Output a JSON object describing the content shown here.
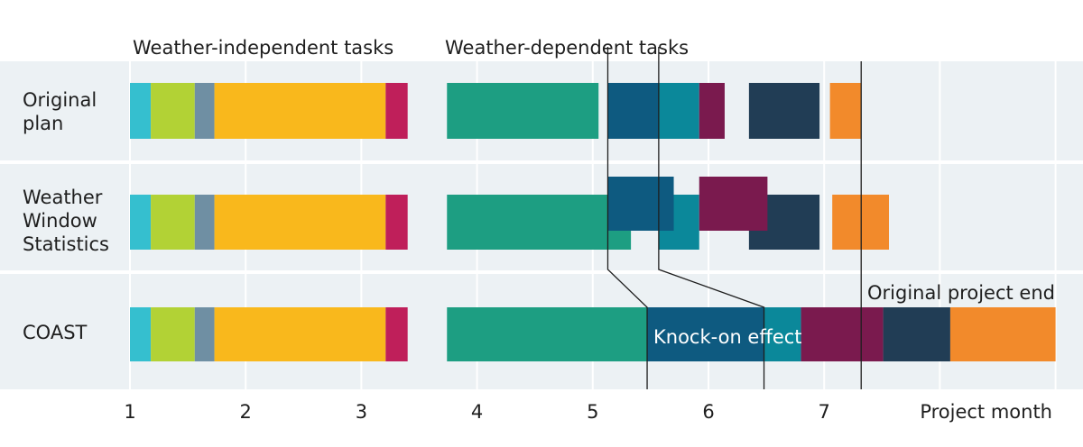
{
  "chart_data": {
    "type": "gantt",
    "xlabel": "Project month",
    "x_ticks": [
      "1",
      "2",
      "3",
      "4",
      "5",
      "6",
      "7"
    ],
    "xlim": [
      1,
      8.05
    ],
    "group_labels": [
      "Weather-independent tasks",
      "Weather-dependent tasks"
    ],
    "rows": [
      {
        "label": "Original plan",
        "label_lines": [
          "Original",
          "plan"
        ],
        "bars": [
          {
            "start": 1.0,
            "end": 1.18,
            "color": "#35bfcf"
          },
          {
            "start": 1.18,
            "end": 1.56,
            "color": "#b2d235"
          },
          {
            "start": 1.56,
            "end": 1.73,
            "color": "#6f8fa3"
          },
          {
            "start": 1.73,
            "end": 3.21,
            "color": "#f9b81c"
          },
          {
            "start": 3.21,
            "end": 3.4,
            "color": "#bf1f5a"
          },
          {
            "start": 3.74,
            "end": 5.05,
            "color": "#1d9e82"
          },
          {
            "start": 5.13,
            "end": 5.57,
            "color": "#0e5a80"
          },
          {
            "start": 5.57,
            "end": 5.92,
            "color": "#0b889a"
          },
          {
            "start": 5.92,
            "end": 6.14,
            "color": "#7a1a4e"
          },
          {
            "start": 6.35,
            "end": 6.96,
            "color": "#213d55"
          },
          {
            "start": 7.05,
            "end": 7.32,
            "color": "#f28a2b"
          }
        ]
      },
      {
        "label": "Weather Window Statistics",
        "label_lines": [
          "Weather",
          "Window",
          "Statistics"
        ],
        "bars": [
          {
            "start": 1.0,
            "end": 1.18,
            "color": "#35bfcf"
          },
          {
            "start": 1.18,
            "end": 1.56,
            "color": "#b2d235"
          },
          {
            "start": 1.56,
            "end": 1.73,
            "color": "#6f8fa3"
          },
          {
            "start": 1.73,
            "end": 3.21,
            "color": "#f9b81c"
          },
          {
            "start": 3.21,
            "end": 3.4,
            "color": "#bf1f5a"
          },
          {
            "start": 3.74,
            "end": 5.33,
            "color": "#1d9e82"
          },
          {
            "start": 5.13,
            "end": 5.7,
            "color": "#0e5a80",
            "level": "upper"
          },
          {
            "start": 5.57,
            "end": 5.92,
            "color": "#0b889a"
          },
          {
            "start": 5.92,
            "end": 6.51,
            "color": "#7a1a4e",
            "level": "upper"
          },
          {
            "start": 6.35,
            "end": 6.96,
            "color": "#213d55"
          },
          {
            "start": 7.07,
            "end": 7.56,
            "color": "#f28a2b"
          }
        ]
      },
      {
        "label": "COAST",
        "label_lines": [
          "COAST"
        ],
        "bars": [
          {
            "start": 1.0,
            "end": 1.18,
            "color": "#35bfcf"
          },
          {
            "start": 1.18,
            "end": 1.56,
            "color": "#b2d235"
          },
          {
            "start": 1.56,
            "end": 1.73,
            "color": "#6f8fa3"
          },
          {
            "start": 1.73,
            "end": 3.21,
            "color": "#f9b81c"
          },
          {
            "start": 3.21,
            "end": 3.4,
            "color": "#bf1f5a"
          },
          {
            "start": 3.74,
            "end": 5.47,
            "color": "#1d9e82"
          },
          {
            "start": 5.47,
            "end": 6.48,
            "color": "#0e5a80"
          },
          {
            "start": 6.48,
            "end": 6.8,
            "color": "#0b889a"
          },
          {
            "start": 6.8,
            "end": 7.51,
            "color": "#7a1a4e"
          },
          {
            "start": 7.51,
            "end": 8.09,
            "color": "#213d55"
          },
          {
            "start": 8.09,
            "end": 9.0,
            "color": "#f28a2b"
          }
        ]
      }
    ],
    "annotations": {
      "knock_on_effect": "Knock-on effect",
      "original_project_end": "Original project end",
      "original_end_month": 7.32
    },
    "shift_lines": [
      {
        "from": 5.13,
        "to": 5.47
      },
      {
        "from": 5.57,
        "to": 6.48
      }
    ]
  }
}
